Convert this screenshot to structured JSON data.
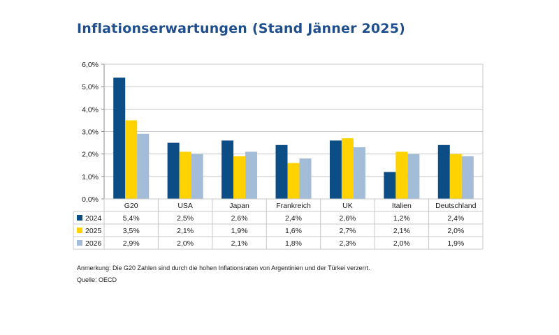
{
  "title": "Inflationserwartungen (Stand Jänner 2025)",
  "footnote": "Anmerkung: Die G20 Zahlen sind durch die hohen Inflationsraten von Argentinien und der Türkei verzerrt.",
  "source": "Quelle: OECD",
  "colors": {
    "title": "#1f4e8c",
    "series": [
      "#0d4d86",
      "#ffd200",
      "#a3bcd8"
    ],
    "axis": "#8c8c8c",
    "grid": "#c8c8c8",
    "text": "#1a1a1a"
  },
  "chart_data": {
    "type": "bar",
    "categories": [
      "G20",
      "USA",
      "Japan",
      "Frankreich",
      "UK",
      "Italien",
      "Deutschland"
    ],
    "series": [
      {
        "name": "2024",
        "values": [
          5.4,
          2.5,
          2.6,
          2.4,
          2.6,
          1.2,
          2.4
        ]
      },
      {
        "name": "2025",
        "values": [
          3.5,
          2.1,
          1.9,
          1.6,
          2.7,
          2.1,
          2.0
        ]
      },
      {
        "name": "2026",
        "values": [
          2.9,
          2.0,
          2.1,
          1.8,
          2.3,
          2.0,
          1.9
        ]
      }
    ],
    "table_values": [
      [
        "5,4%",
        "2,5%",
        "2,6%",
        "2,4%",
        "2,6%",
        "1,2%",
        "2,4%"
      ],
      [
        "3,5%",
        "2,1%",
        "1,9%",
        "1,6%",
        "2,7%",
        "2,1%",
        "2,0%"
      ],
      [
        "2,9%",
        "2,0%",
        "2,1%",
        "1,8%",
        "2,3%",
        "2,0%",
        "1,9%"
      ]
    ],
    "yticks": [
      0,
      1,
      2,
      3,
      4,
      5,
      6
    ],
    "ytick_labels": [
      "0,0%",
      "1,0%",
      "2,0%",
      "3,0%",
      "4,0%",
      "5,0%",
      "6,0%"
    ],
    "ylim": [
      0,
      6
    ],
    "grid": true,
    "legend": "data-table-left"
  }
}
